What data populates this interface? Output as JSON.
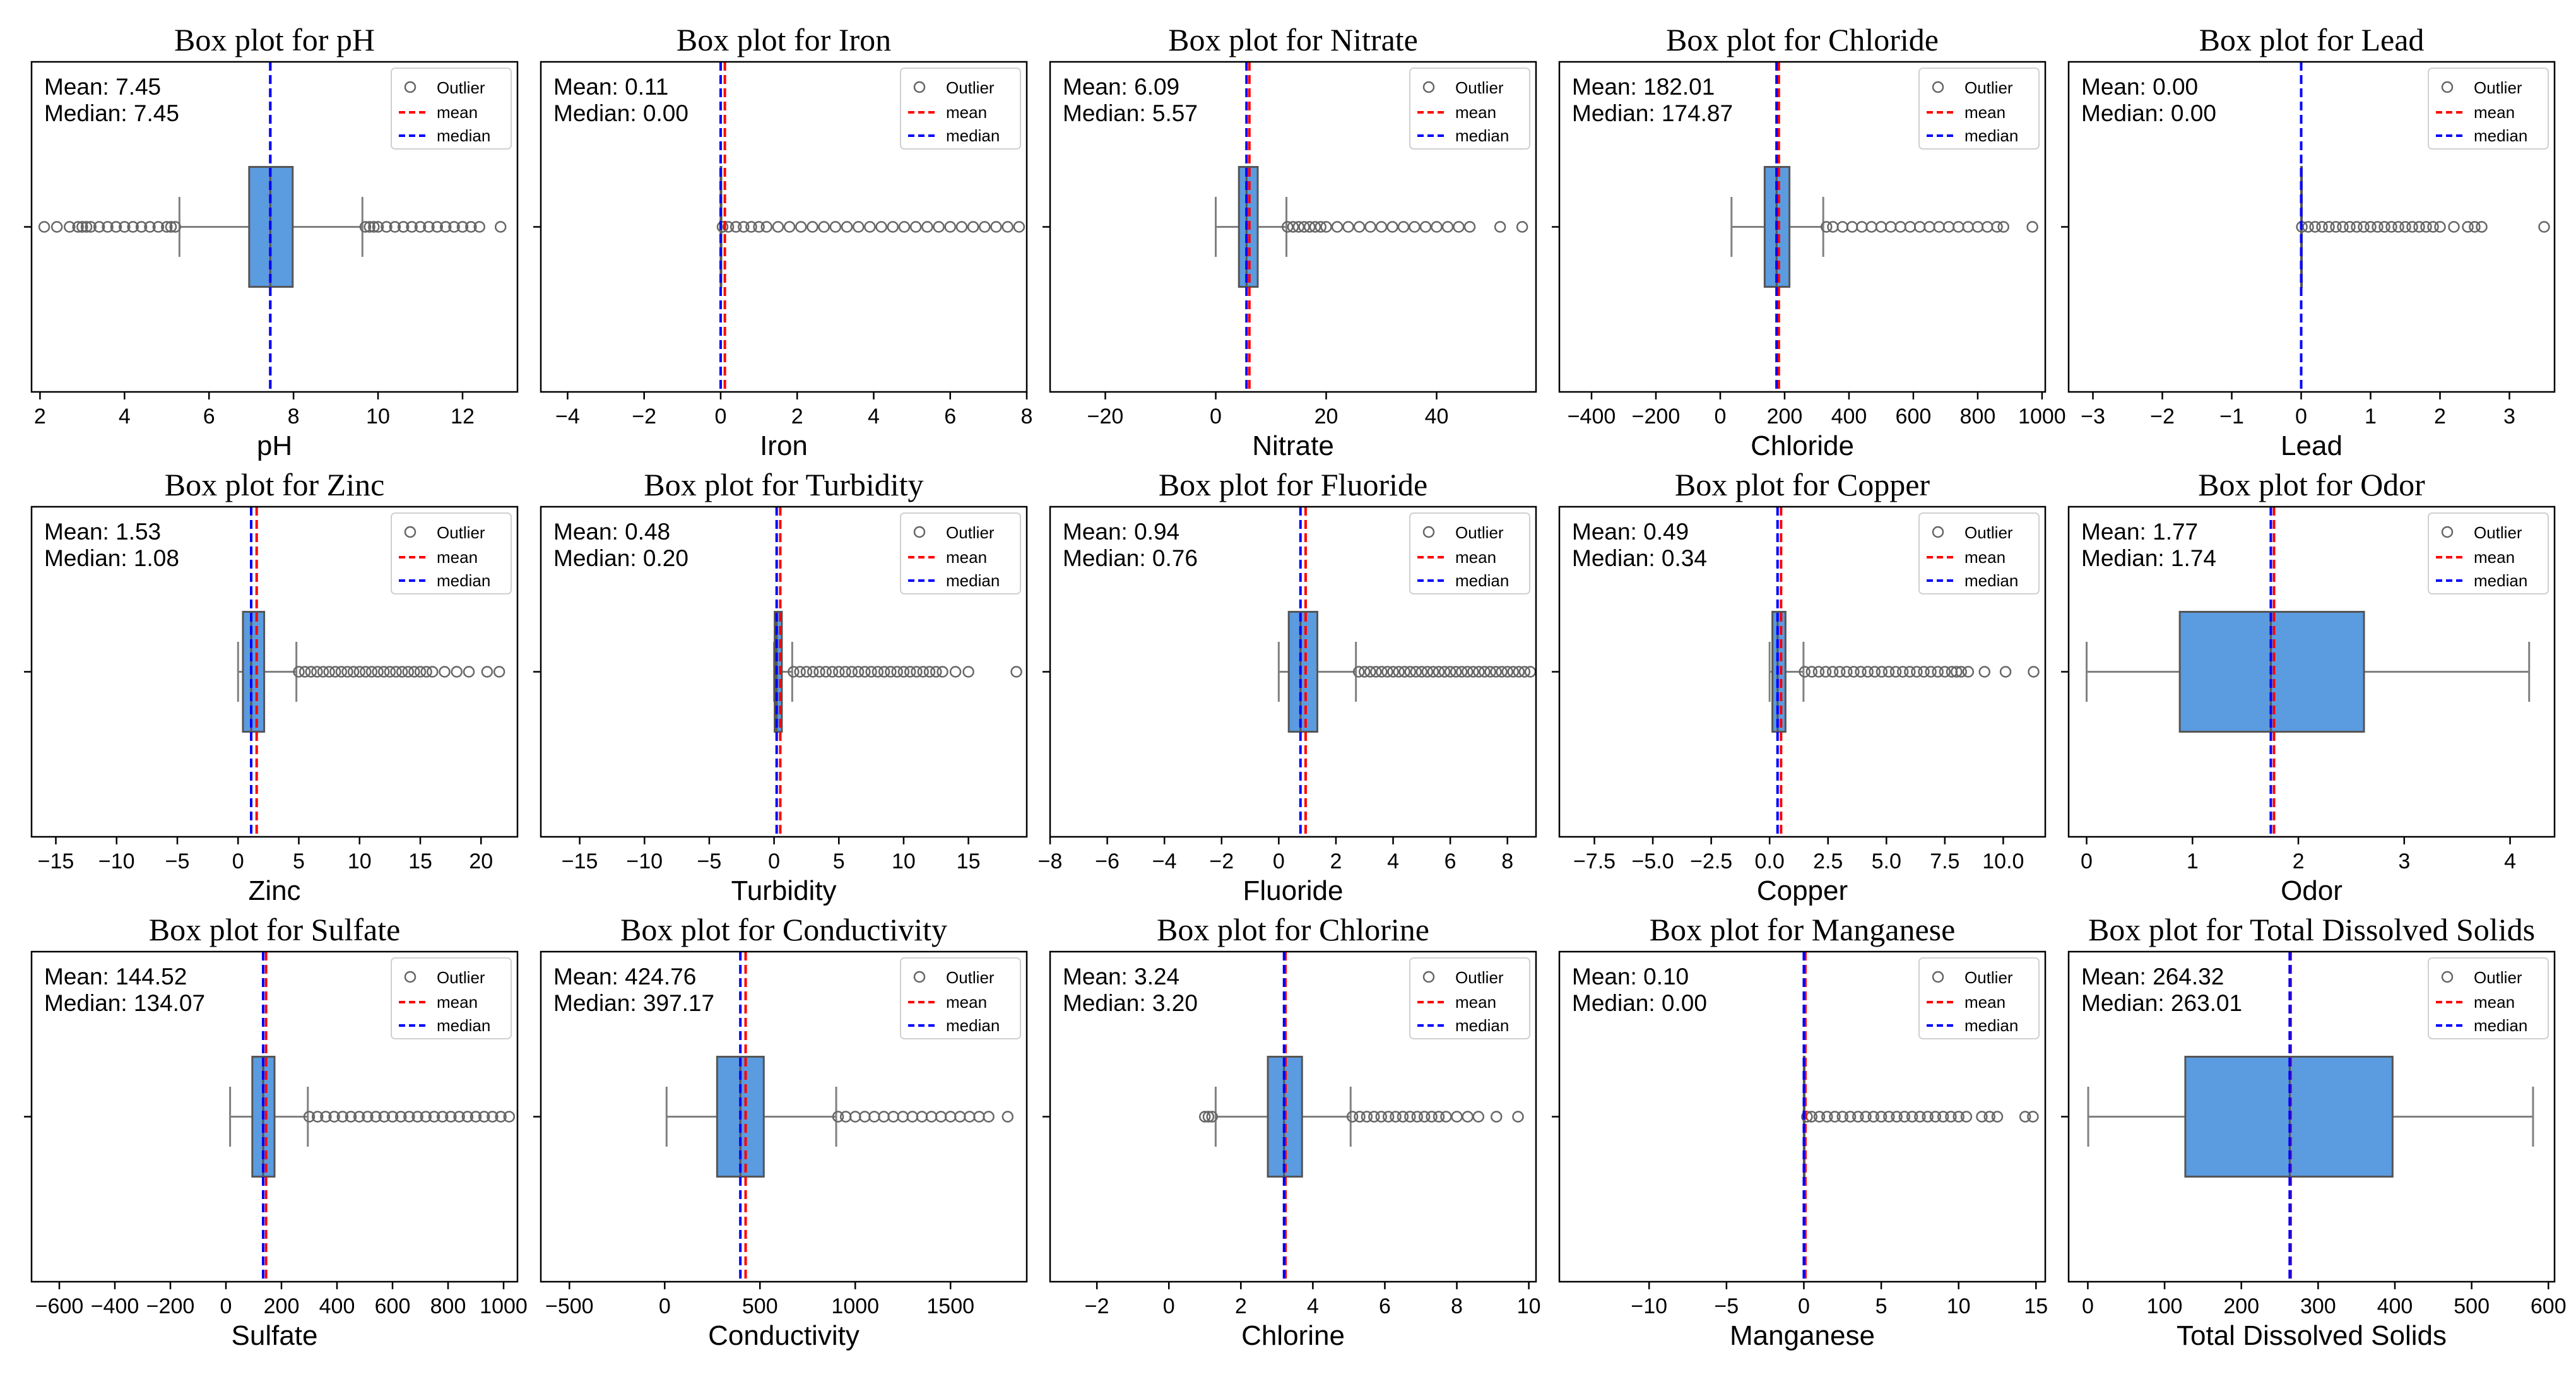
{
  "legend_labels": {
    "outlier": "Outlier",
    "mean": "mean",
    "median": "median"
  },
  "stat_labels": {
    "mean": "Mean:",
    "median": "Median:"
  },
  "colors": {
    "box": "#5b9be0",
    "mean": "#ff0000",
    "median": "#0000ff",
    "whisker": "#808080",
    "axes": "#000000"
  },
  "chart_data": [
    {
      "type": "box",
      "title": "Box plot for pH",
      "xlabel": "pH",
      "xlim": [
        1.8,
        13.3
      ],
      "ticks": [
        2,
        4,
        6,
        8,
        10,
        12
      ],
      "tick_labels": [
        "2",
        "4",
        "6",
        "8",
        "10",
        "12"
      ],
      "whisker_low": 5.3,
      "q1": 6.95,
      "median": 7.45,
      "q3": 7.98,
      "whisker_high": 9.63,
      "mean": 7.45,
      "mean_label": "7.45",
      "median_label": "7.45",
      "outliers_low": [
        2.1,
        2.4,
        2.7,
        2.9,
        3.0,
        3.1,
        3.2,
        3.4,
        3.6,
        3.8,
        4.0,
        4.2,
        4.4,
        4.6,
        4.8,
        5.0,
        5.1,
        5.2
      ],
      "outliers_high": [
        9.7,
        9.8,
        9.9,
        10.0,
        10.2,
        10.4,
        10.6,
        10.8,
        11.0,
        11.2,
        11.4,
        11.6,
        11.8,
        12.0,
        12.2,
        12.4,
        12.9
      ]
    },
    {
      "type": "box",
      "title": "Box plot for Iron",
      "xlabel": "Iron",
      "xlim": [
        -4.7,
        8.0
      ],
      "ticks": [
        -4,
        -2,
        0,
        2,
        4,
        6,
        8
      ],
      "tick_labels": [
        "−4",
        "−2",
        "0",
        "2",
        "4",
        "6",
        "8"
      ],
      "whisker_low": 0.0,
      "q1": 0.0,
      "median": 0.0,
      "q3": 0.01,
      "whisker_high": 0.02,
      "mean": 0.11,
      "mean_label": "0.11",
      "median_label": "0.00",
      "outliers_low": [],
      "outliers_high": [
        0.05,
        0.2,
        0.4,
        0.6,
        0.8,
        1.0,
        1.2,
        1.5,
        1.8,
        2.1,
        2.4,
        2.7,
        3.0,
        3.3,
        3.6,
        3.9,
        4.2,
        4.5,
        4.8,
        5.1,
        5.4,
        5.7,
        6.0,
        6.3,
        6.6,
        6.9,
        7.2,
        7.5,
        7.8
      ]
    },
    {
      "type": "box",
      "title": "Box plot for Nitrate",
      "xlabel": "Nitrate",
      "xlim": [
        -30,
        58
      ],
      "ticks": [
        -20,
        0,
        20,
        40
      ],
      "tick_labels": [
        "−20",
        "0",
        "20",
        "40"
      ],
      "whisker_low": 0.0,
      "q1": 4.2,
      "median": 5.57,
      "q3": 7.6,
      "whisker_high": 12.8,
      "mean": 6.09,
      "mean_label": "6.09",
      "median_label": "5.57",
      "outliers_low": [],
      "outliers_high": [
        13,
        14,
        15,
        16,
        17,
        18,
        19,
        20,
        22,
        24,
        26,
        28,
        30,
        32,
        34,
        36,
        38,
        40,
        42,
        44,
        46,
        51.5,
        55.5
      ]
    },
    {
      "type": "box",
      "title": "Box plot for Chloride",
      "xlabel": "Chloride",
      "xlim": [
        -500,
        1010
      ],
      "ticks": [
        -400,
        -200,
        0,
        200,
        400,
        600,
        800,
        1000
      ],
      "tick_labels": [
        "−400",
        "−200",
        "0",
        "200",
        "400",
        "600",
        "800",
        "1000"
      ],
      "whisker_low": 35,
      "q1": 138,
      "median": 174.87,
      "q3": 215,
      "whisker_high": 320,
      "mean": 182.01,
      "mean_label": "182.01",
      "median_label": "174.87",
      "outliers_low": [],
      "outliers_high": [
        330,
        350,
        380,
        410,
        440,
        470,
        500,
        530,
        560,
        590,
        620,
        650,
        680,
        710,
        740,
        770,
        800,
        830,
        860,
        880,
        970
      ]
    },
    {
      "type": "box",
      "title": "Box plot for Lead",
      "xlabel": "Lead",
      "xlim": [
        -3.35,
        3.65
      ],
      "ticks": [
        -3,
        -2,
        -1,
        0,
        1,
        2,
        3
      ],
      "tick_labels": [
        "−3",
        "−2",
        "−1",
        "0",
        "1",
        "2",
        "3"
      ],
      "whisker_low": 0.0,
      "q1": 0.0,
      "median": 0.0,
      "q3": 0.0,
      "whisker_high": 0.0,
      "mean": 0.0,
      "mean_label": "0.00",
      "median_label": "0.00",
      "outliers_low": [],
      "outliers_high": [
        0.01,
        0.1,
        0.2,
        0.3,
        0.4,
        0.5,
        0.6,
        0.7,
        0.8,
        0.9,
        1.0,
        1.1,
        1.2,
        1.3,
        1.4,
        1.5,
        1.6,
        1.7,
        1.8,
        1.9,
        2.0,
        2.2,
        2.4,
        2.5,
        2.6,
        3.5
      ]
    },
    {
      "type": "box",
      "title": "Box plot for Zinc",
      "xlabel": "Zinc",
      "xlim": [
        -17,
        23
      ],
      "ticks": [
        -15,
        -10,
        -5,
        0,
        5,
        10,
        15,
        20
      ],
      "tick_labels": [
        "−15",
        "−10",
        "−5",
        "0",
        "5",
        "10",
        "15",
        "20"
      ],
      "whisker_low": 0.0,
      "q1": 0.4,
      "median": 1.08,
      "q3": 2.15,
      "whisker_high": 4.8,
      "mean": 1.53,
      "mean_label": "1.53",
      "median_label": "1.08",
      "outliers_low": [],
      "outliers_high": [
        5.0,
        5.5,
        6.0,
        6.5,
        7,
        7.5,
        8,
        8.5,
        9,
        9.5,
        10,
        10.5,
        11,
        11.5,
        12,
        12.5,
        13,
        13.5,
        14,
        14.5,
        15,
        15.5,
        16,
        17,
        18,
        19,
        20.5,
        21.5
      ]
    },
    {
      "type": "box",
      "title": "Box plot for Turbidity",
      "xlabel": "Turbidity",
      "xlim": [
        -18,
        19.5
      ],
      "ticks": [
        -15,
        -10,
        -5,
        0,
        5,
        10,
        15
      ],
      "tick_labels": [
        "−15",
        "−10",
        "−5",
        "0",
        "5",
        "10",
        "15"
      ],
      "whisker_low": 0.0,
      "q1": 0.05,
      "median": 0.2,
      "q3": 0.6,
      "whisker_high": 1.4,
      "mean": 0.48,
      "mean_label": "0.48",
      "median_label": "0.20",
      "outliers_low": [],
      "outliers_high": [
        1.5,
        2,
        2.5,
        3,
        3.5,
        4,
        4.5,
        5,
        5.5,
        6,
        6.5,
        7,
        7.5,
        8,
        8.5,
        9,
        9.5,
        10,
        10.5,
        11,
        11.5,
        12,
        12.5,
        13,
        14,
        15,
        18.7
      ]
    },
    {
      "type": "box",
      "title": "Box plot for Fluoride",
      "xlabel": "Fluoride",
      "xlim": [
        -8,
        9.0
      ],
      "ticks": [
        -8,
        -6,
        -4,
        -2,
        0,
        2,
        4,
        6,
        8
      ],
      "tick_labels": [
        "−8",
        "−6",
        "−4",
        "−2",
        "0",
        "2",
        "4",
        "6",
        "8"
      ],
      "whisker_low": 0.0,
      "q1": 0.35,
      "median": 0.76,
      "q3": 1.35,
      "whisker_high": 2.7,
      "mean": 0.94,
      "mean_label": "0.94",
      "median_label": "0.76",
      "outliers_low": [],
      "outliers_high": [
        2.8,
        3.0,
        3.2,
        3.4,
        3.6,
        3.8,
        4.0,
        4.2,
        4.4,
        4.6,
        4.8,
        5.0,
        5.2,
        5.4,
        5.6,
        5.8,
        6.0,
        6.2,
        6.4,
        6.6,
        6.8,
        7.0,
        7.2,
        7.4,
        7.6,
        7.8,
        8.0,
        8.2,
        8.4,
        8.6,
        8.8
      ]
    },
    {
      "type": "box",
      "title": "Box plot for Copper",
      "xlabel": "Copper",
      "xlim": [
        -9.0,
        11.8
      ],
      "ticks": [
        -7.5,
        -5,
        -2.5,
        0,
        2.5,
        5,
        7.5,
        10
      ],
      "tick_labels": [
        "−7.5",
        "−5.0",
        "−2.5",
        "0.0",
        "2.5",
        "5.0",
        "7.5",
        "10.0"
      ],
      "whisker_low": 0.0,
      "q1": 0.12,
      "median": 0.34,
      "q3": 0.68,
      "whisker_high": 1.45,
      "mean": 0.49,
      "mean_label": "0.49",
      "median_label": "0.34",
      "outliers_low": [],
      "outliers_high": [
        1.5,
        1.8,
        2.1,
        2.4,
        2.7,
        3.0,
        3.3,
        3.6,
        3.9,
        4.2,
        4.5,
        4.8,
        5.1,
        5.4,
        5.7,
        6.0,
        6.3,
        6.6,
        6.9,
        7.2,
        7.5,
        7.8,
        8.0,
        8.2,
        8.5,
        9.2,
        10.1,
        11.3
      ]
    },
    {
      "type": "box",
      "title": "Box plot for Odor",
      "xlabel": "Odor",
      "xlim": [
        -0.17,
        4.42
      ],
      "ticks": [
        0,
        1,
        2,
        3,
        4
      ],
      "tick_labels": [
        "0",
        "1",
        "2",
        "3",
        "4"
      ],
      "whisker_low": 0.0,
      "q1": 0.88,
      "median": 1.74,
      "q3": 2.62,
      "whisker_high": 4.18,
      "mean": 1.77,
      "mean_label": "1.77",
      "median_label": "1.74",
      "outliers_low": [],
      "outliers_high": []
    },
    {
      "type": "box",
      "title": "Box plot for Sulfate",
      "xlabel": "Sulfate",
      "xlim": [
        -700,
        1050
      ],
      "ticks": [
        -600,
        -400,
        -200,
        0,
        200,
        400,
        600,
        800,
        1000
      ],
      "tick_labels": [
        "−600",
        "−400",
        "−200",
        "0",
        "200",
        "400",
        "600",
        "800",
        "1000"
      ],
      "whisker_low": 15,
      "q1": 95,
      "median": 134.07,
      "q3": 175,
      "whisker_high": 295,
      "mean": 144.52,
      "mean_label": "144.52",
      "median_label": "134.07",
      "outliers_low": [],
      "outliers_high": [
        300,
        330,
        360,
        390,
        420,
        450,
        480,
        510,
        540,
        570,
        600,
        630,
        660,
        690,
        720,
        750,
        780,
        810,
        840,
        870,
        900,
        930,
        960,
        990,
        1020
      ]
    },
    {
      "type": "box",
      "title": "Box plot for Conductivity",
      "xlabel": "Conductivity",
      "xlim": [
        -650,
        1900
      ],
      "ticks": [
        -500,
        0,
        500,
        1000,
        1500
      ],
      "tick_labels": [
        "−500",
        "0",
        "500",
        "1000",
        "1500"
      ],
      "whisker_low": 10,
      "q1": 275,
      "median": 397.17,
      "q3": 520,
      "whisker_high": 900,
      "mean": 424.76,
      "mean_label": "424.76",
      "median_label": "397.17",
      "outliers_low": [],
      "outliers_high": [
        910,
        950,
        1000,
        1050,
        1100,
        1150,
        1200,
        1250,
        1300,
        1350,
        1400,
        1450,
        1500,
        1550,
        1600,
        1650,
        1700,
        1800
      ]
    },
    {
      "type": "box",
      "title": "Box plot for Chlorine",
      "xlabel": "Chlorine",
      "xlim": [
        -3.3,
        10.2
      ],
      "ticks": [
        -2,
        0,
        2,
        4,
        6,
        8,
        10
      ],
      "tick_labels": [
        "−2",
        "0",
        "2",
        "4",
        "6",
        "8",
        "10"
      ],
      "whisker_low": 1.3,
      "q1": 2.75,
      "median": 3.2,
      "q3": 3.7,
      "whisker_high": 5.05,
      "mean": 3.24,
      "mean_label": "3.24",
      "median_label": "3.20",
      "outliers_low": [
        1.0,
        1.1,
        1.2
      ],
      "outliers_high": [
        5.1,
        5.3,
        5.5,
        5.7,
        5.9,
        6.1,
        6.3,
        6.5,
        6.7,
        6.9,
        7.1,
        7.3,
        7.5,
        7.7,
        8.0,
        8.3,
        8.6,
        9.1,
        9.7
      ]
    },
    {
      "type": "box",
      "title": "Box plot for Manganese",
      "xlabel": "Manganese",
      "xlim": [
        -15.8,
        15.6
      ],
      "ticks": [
        -10,
        -5,
        0,
        5,
        10,
        15
      ],
      "tick_labels": [
        "−10",
        "−5",
        "0",
        "5",
        "10",
        "15"
      ],
      "whisker_low": 0.0,
      "q1": 0.0,
      "median": 0.0,
      "q3": 0.0,
      "whisker_high": 0.0,
      "mean": 0.1,
      "mean_label": "0.10",
      "median_label": "0.00",
      "outliers_low": [],
      "outliers_high": [
        0.2,
        0.5,
        1,
        1.5,
        2,
        2.5,
        3,
        3.5,
        4,
        4.5,
        5,
        5.5,
        6,
        6.5,
        7,
        7.5,
        8,
        8.5,
        9,
        9.5,
        10,
        10.5,
        11.5,
        12,
        12.5,
        14.3,
        14.8
      ]
    },
    {
      "type": "box",
      "title": "Box plot for Total Dissolved Solids",
      "xlabel": "Total Dissolved Solids",
      "xlim": [
        -25,
        608
      ],
      "ticks": [
        0,
        100,
        200,
        300,
        400,
        500,
        600
      ],
      "tick_labels": [
        "0",
        "100",
        "200",
        "300",
        "400",
        "500",
        "600"
      ],
      "whisker_low": 0.5,
      "q1": 127,
      "median": 263.01,
      "q3": 397,
      "whisker_high": 580,
      "mean": 264.32,
      "mean_label": "264.32",
      "median_label": "263.01",
      "outliers_low": [],
      "outliers_high": []
    }
  ]
}
